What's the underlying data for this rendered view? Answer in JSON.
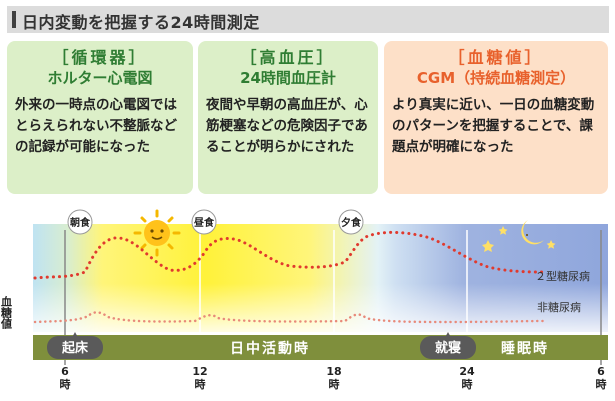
{
  "title": "日内変動を把握する24時間測定",
  "cards": [
    {
      "heading": "［循環器］",
      "subheading": "ホルター心電図",
      "description": "外来の一時点の心電図ではとらえられない不整脈などの記録が可能になった"
    },
    {
      "heading": "［高血圧］",
      "subheading": "24時間血圧計",
      "description": "夜間や早朝の高血圧が、心筋梗塞などの危険因子であることが明らかにされた"
    },
    {
      "heading": "［血糖値］",
      "subheading": "CGM（持続血糖測定）",
      "description": "より真実に近い、一日の血糖変動のパターンを把握することで、課題点が明確になった"
    }
  ],
  "timeline": {
    "meals": [
      "朝食",
      "昼食",
      "夕食"
    ],
    "y_label": "血糖値",
    "series": [
      "２型糖尿病",
      "非糖尿病"
    ],
    "band_labels": {
      "wake": "起床",
      "day": "日中活動時",
      "bed": "就寝",
      "sleep": "睡眠時"
    },
    "ticks": [
      {
        "num": "6",
        "unit": "時"
      },
      {
        "num": "12",
        "unit": "時"
      },
      {
        "num": "18",
        "unit": "時"
      },
      {
        "num": "24",
        "unit": "時"
      },
      {
        "num": "6",
        "unit": "時"
      }
    ],
    "colors": {
      "type2": "#e03a2e",
      "normal": "#e88a7a",
      "band": "#7f8f3c",
      "day": "#fff23a",
      "night": "#8aa0d8"
    }
  }
}
